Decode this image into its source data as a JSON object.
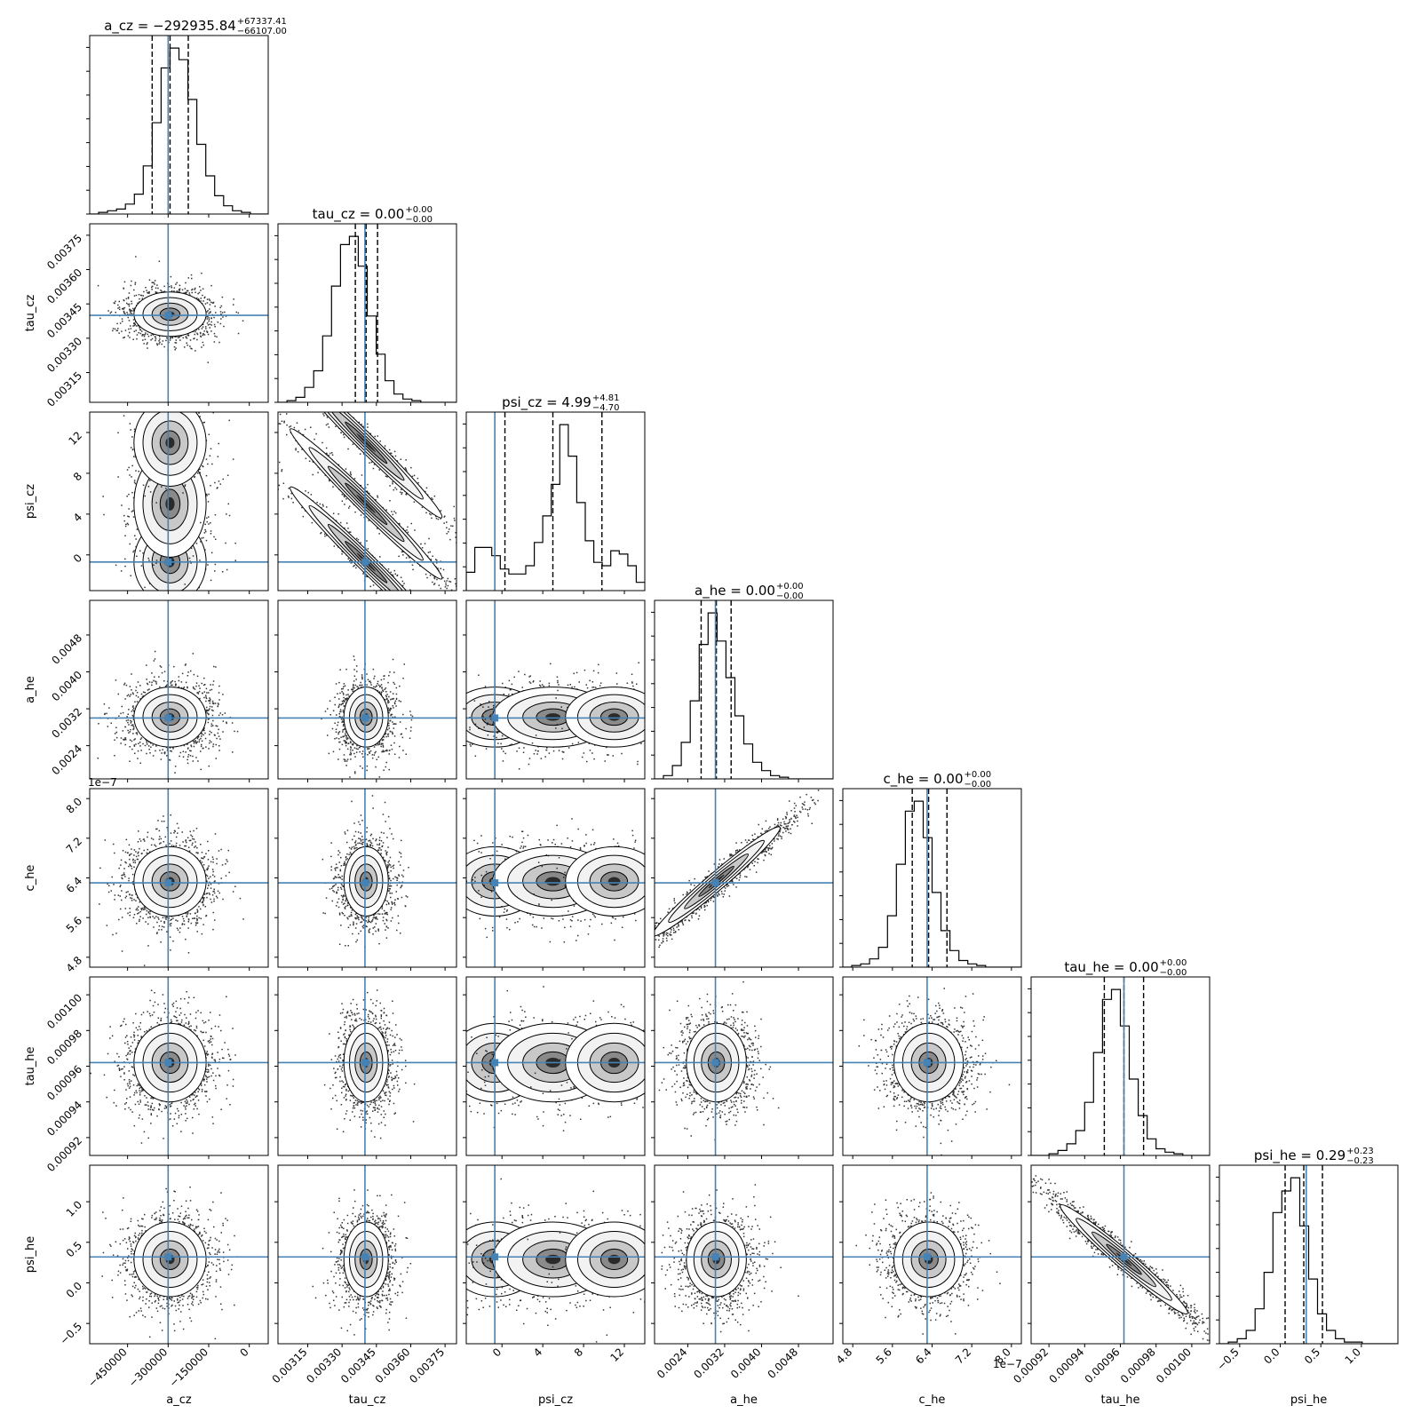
{
  "chart_data": {
    "type": "corner",
    "parameters": [
      "a_cz",
      "tau_cz",
      "psi_cz",
      "a_he",
      "c_he",
      "tau_he",
      "psi_he"
    ],
    "truth_color": "#4682b4",
    "titles": [
      {
        "param": "a_cz",
        "prefix": "a_cz = −292935.84",
        "plus": "+67337.41",
        "minus": "−66107.00"
      },
      {
        "param": "tau_cz",
        "prefix": "tau_cz = 0.00",
        "plus": "+0.00",
        "minus": "−0.00"
      },
      {
        "param": "psi_cz",
        "prefix": "psi_cz = 4.99",
        "plus": "+4.81",
        "minus": "−4.70"
      },
      {
        "param": "a_he",
        "prefix": "a_he = 0.00",
        "plus": "+0.00",
        "minus": "−0.00"
      },
      {
        "param": "c_he",
        "prefix": "c_he = 0.00",
        "plus": "+0.00",
        "minus": "−0.00"
      },
      {
        "param": "tau_he",
        "prefix": "tau_he = 0.00",
        "plus": "+0.00",
        "minus": "−0.00"
      },
      {
        "param": "psi_he",
        "prefix": "psi_he = 0.29",
        "plus": "+0.23",
        "minus": "−0.23"
      }
    ],
    "ranges": [
      [
        -590000,
        70000
      ],
      [
        0.00302,
        0.0038
      ],
      [
        -3.5,
        14
      ],
      [
        0.00168,
        0.00555
      ],
      [
        4.6e-07,
        8.2e-07
      ],
      [
        0.00091,
        0.00101
      ],
      [
        -0.75,
        1.45
      ]
    ],
    "ticks": [
      {
        "values": [
          -450000,
          -300000,
          -150000,
          0
        ],
        "labels": [
          "−450000",
          "−300000",
          "−150000",
          "0"
        ]
      },
      {
        "values": [
          0.00315,
          0.0033,
          0.00345,
          0.0036,
          0.00375
        ],
        "labels": [
          "0.00315",
          "0.00330",
          "0.00345",
          "0.00360",
          "0.00375"
        ]
      },
      {
        "values": [
          0,
          4,
          8,
          12
        ],
        "labels": [
          "0",
          "4",
          "8",
          "12"
        ]
      },
      {
        "values": [
          0.0024,
          0.0032,
          0.004,
          0.0048
        ],
        "labels": [
          "0.0024",
          "0.0032",
          "0.0040",
          "0.0048"
        ]
      },
      {
        "values": [
          4.8e-07,
          5.6e-07,
          6.4e-07,
          7.2e-07,
          8e-07
        ],
        "labels": [
          "4.8",
          "5.6",
          "6.4",
          "7.2",
          "8.0"
        ]
      },
      {
        "values": [
          0.00092,
          0.00094,
          0.00096,
          0.00098,
          0.001
        ],
        "labels": [
          "0.00092",
          "0.00094",
          "0.00096",
          "0.00098",
          "0.00100"
        ]
      },
      {
        "values": [
          -0.5,
          0,
          0.5,
          1.0
        ],
        "labels": [
          "−0.5",
          "0.0",
          "0.5",
          "1.0"
        ]
      }
    ],
    "offset_label": "1e−7",
    "offset_param": "c_he",
    "truths": [
      -300000,
      0.0034,
      -0.7,
      0.003,
      6.3e-07,
      0.000962,
      0.32
    ],
    "medians": [
      -292935.84,
      0.003405,
      4.99,
      0.00302,
      6.33e-07,
      0.000962,
      0.29
    ],
    "quantiles_16": [
      -359042.84,
      0.003358,
      0.29,
      0.00269,
      6e-07,
      0.000951,
      0.06
    ],
    "quantiles_84": [
      -225598.43,
      0.003455,
      9.8,
      0.00334,
      6.7e-07,
      0.000973,
      0.52
    ],
    "marginals": [
      [
        0,
        0.01,
        0.02,
        0.03,
        0.06,
        0.12,
        0.29,
        0.55,
        0.88,
        1.0,
        0.93,
        0.69,
        0.42,
        0.23,
        0.11,
        0.05,
        0.02,
        0.01,
        0,
        0
      ],
      [
        0,
        0.01,
        0.03,
        0.09,
        0.19,
        0.4,
        0.7,
        0.95,
        1.0,
        0.82,
        0.52,
        0.29,
        0.13,
        0.05,
        0.02,
        0.01,
        0,
        0,
        0,
        0
      ],
      [
        0.11,
        0.26,
        0.26,
        0.21,
        0.13,
        0.1,
        0.1,
        0.15,
        0.29,
        0.45,
        0.64,
        1.0,
        0.81,
        0.53,
        0.3,
        0.17,
        0.15,
        0.24,
        0.22,
        0.15,
        0.05
      ],
      [
        0,
        0.02,
        0.08,
        0.22,
        0.47,
        0.81,
        1.0,
        0.83,
        0.61,
        0.38,
        0.21,
        0.1,
        0.05,
        0.02,
        0.01,
        0,
        0,
        0,
        0,
        0
      ],
      [
        0,
        0.01,
        0.02,
        0.05,
        0.12,
        0.31,
        0.62,
        0.94,
        1.0,
        0.78,
        0.45,
        0.22,
        0.1,
        0.04,
        0.02,
        0.01,
        0,
        0,
        0,
        0
      ],
      [
        0,
        0,
        0.01,
        0.03,
        0.07,
        0.15,
        0.32,
        0.62,
        0.94,
        1.0,
        0.78,
        0.46,
        0.24,
        0.1,
        0.04,
        0.02,
        0.01,
        0,
        0,
        0
      ],
      [
        0,
        0.01,
        0.03,
        0.08,
        0.21,
        0.43,
        0.79,
        0.92,
        1.0,
        0.71,
        0.39,
        0.18,
        0.08,
        0.03,
        0.01,
        0.01,
        0,
        0,
        0,
        0
      ]
    ],
    "psi_cz_modes": [
      -0.7,
      5.0,
      11.0
    ],
    "correlations": {
      "tau_cz|psi_cz": "strong negative (three parallel branches)",
      "a_he|c_he": "strong positive",
      "tau_he|psi_he": "strong negative"
    }
  }
}
